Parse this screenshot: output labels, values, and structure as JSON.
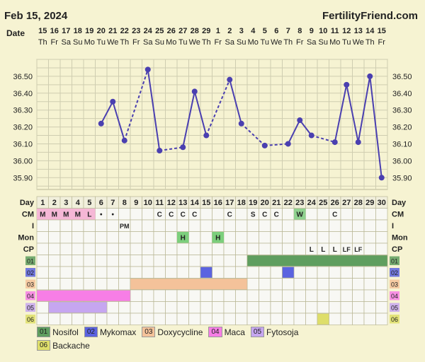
{
  "header": {
    "date_label": "Feb 15, 2024",
    "brand": "FertilityFriend.com",
    "date_row_label": "Date"
  },
  "colors": {
    "background": "#f6f3d2",
    "grid_bg": "#f6f3d2",
    "line": "#4a3fb0",
    "nosifol": "#5f9e5f",
    "mykomax": "#5b63e0",
    "doxycycline": "#f4c29a",
    "maca": "#f77ee6",
    "fytosoja": "#c6a6f0",
    "backache": "#dede6a",
    "cm_pink": "#f5b7d6",
    "cm_green": "#8fd18f",
    "ovu_green": "#7ccf7c"
  },
  "chart_data": {
    "type": "line",
    "days": [
      1,
      2,
      3,
      4,
      5,
      6,
      7,
      8,
      9,
      10,
      11,
      12,
      13,
      14,
      15,
      16,
      17,
      18,
      19,
      20,
      21,
      22,
      23,
      24,
      25,
      26,
      27,
      28,
      29,
      30
    ],
    "dates": [
      "15",
      "16",
      "17",
      "18",
      "19",
      "20",
      "21",
      "22",
      "23",
      "24",
      "25",
      "26",
      "27",
      "28",
      "29",
      "1",
      "2",
      "3",
      "4",
      "5",
      "6",
      "7",
      "8",
      "9",
      "10",
      "11",
      "12",
      "13",
      "14",
      "15"
    ],
    "weekdays": [
      "Th",
      "Fr",
      "Sa",
      "Su",
      "Mo",
      "Tu",
      "We",
      "Th",
      "Fr",
      "Sa",
      "Su",
      "Mo",
      "Tu",
      "We",
      "Th",
      "Fr",
      "Sa",
      "Su",
      "Mo",
      "Tu",
      "We",
      "Th",
      "Fr",
      "Sa",
      "Su",
      "Mo",
      "Tu",
      "We",
      "Th",
      "Fr"
    ],
    "temps": [
      null,
      null,
      null,
      null,
      null,
      36.22,
      36.35,
      36.12,
      null,
      36.54,
      36.06,
      null,
      36.08,
      36.41,
      36.15,
      null,
      36.48,
      36.22,
      null,
      36.09,
      null,
      36.1,
      36.24,
      36.15,
      null,
      36.11,
      36.45,
      36.11,
      36.5,
      35.9
    ],
    "ylim": [
      35.83,
      36.6
    ],
    "yticks": [
      "36.50",
      "36.40",
      "36.30",
      "36.20",
      "36.10",
      "36.00",
      "35.90"
    ],
    "ytick_values": [
      36.5,
      36.4,
      36.3,
      36.2,
      36.1,
      36.0,
      35.9
    ],
    "dashed_segments": [
      [
        8,
        10
      ],
      [
        11,
        13
      ],
      [
        15,
        17
      ],
      [
        18,
        20
      ],
      [
        20,
        22
      ],
      [
        24,
        26
      ]
    ]
  },
  "rows": {
    "labels": {
      "day": "Day",
      "cm": "CM",
      "i": "I",
      "mon": "Mon",
      "cp": "CP"
    },
    "cm": [
      "M",
      "M",
      "M",
      "M",
      "L",
      "•",
      "•",
      "",
      "",
      "",
      "C",
      "C",
      "C",
      "C",
      "",
      "",
      "C",
      "",
      "S",
      "C",
      "C",
      "",
      "W",
      "",
      "",
      "C",
      "",
      "",
      "",
      ""
    ],
    "i": [
      "",
      "",
      "",
      "",
      "",
      "",
      "",
      "PM",
      "",
      "",
      "",
      "",
      "",
      "",
      "",
      "",
      "",
      "",
      "",
      "",
      "",
      "",
      "",
      "",
      "",
      "",
      "",
      "",
      "",
      ""
    ],
    "mon": [
      "",
      "",
      "",
      "",
      "",
      "",
      "",
      "",
      "",
      "",
      "",
      "",
      "H",
      "",
      "",
      "H",
      "",
      "",
      "",
      "",
      "",
      "",
      "",
      "",
      "",
      "",
      "",
      "",
      "",
      ""
    ],
    "cp": [
      "",
      "",
      "",
      "",
      "",
      "",
      "",
      "",
      "",
      "",
      "",
      "",
      "",
      "",
      "",
      "",
      "",
      "",
      "",
      "",
      "",
      "",
      "",
      "L",
      "L",
      "L",
      "LF",
      "LF",
      "",
      ""
    ]
  },
  "medications": [
    {
      "code": "01",
      "name": "Nosifol",
      "color": "#5f9e5f",
      "ranges": [
        [
          19,
          30
        ]
      ]
    },
    {
      "code": "02",
      "name": "Mykomax",
      "color": "#5b63e0",
      "ranges": [
        [
          15,
          15
        ],
        [
          22,
          22
        ]
      ]
    },
    {
      "code": "03",
      "name": "Doxycycline",
      "color": "#f4c29a",
      "ranges": [
        [
          9,
          18
        ]
      ]
    },
    {
      "code": "04",
      "name": "Maca",
      "color": "#f77ee6",
      "ranges": [
        [
          1,
          8
        ]
      ]
    },
    {
      "code": "05",
      "name": "Fytosoja",
      "color": "#c6a6f0",
      "ranges": [
        [
          2,
          6
        ]
      ]
    },
    {
      "code": "06",
      "name": "Backache",
      "color": "#dede6a",
      "ranges": [
        [
          25,
          25
        ]
      ]
    }
  ]
}
